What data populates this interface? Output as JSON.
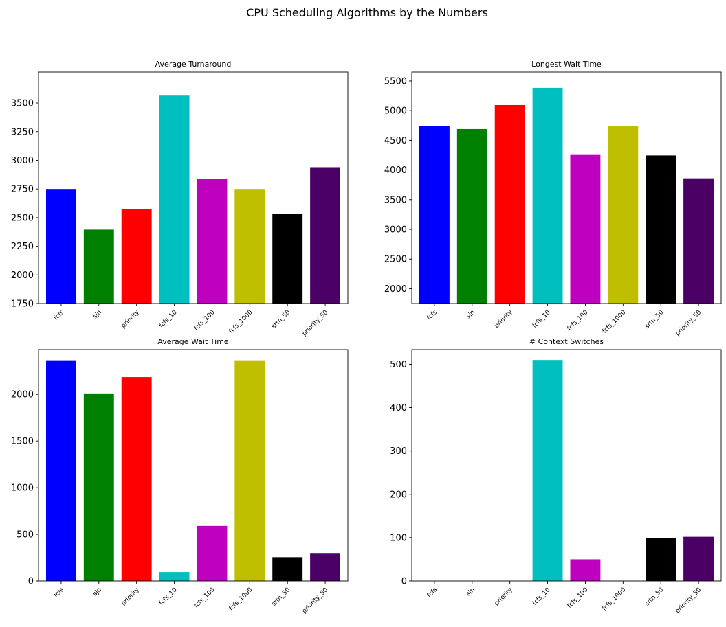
{
  "figure": {
    "suptitle": "CPU Scheduling Algorithms by the Numbers"
  },
  "chart_data": [
    {
      "type": "bar",
      "title": "Average Turnaround",
      "categories": [
        "fcfs",
        "sjn",
        "priority",
        "fcfs_10",
        "fcfs_100",
        "fcfs_1000",
        "srtn_50",
        "priority_50"
      ],
      "values": [
        2750,
        2395,
        2572,
        3565,
        2835,
        2750,
        2530,
        2940
      ],
      "colors": [
        "#0000ff",
        "#008000",
        "#ff0000",
        "#00bfbf",
        "#bf00bf",
        "#bfbf00",
        "#000000",
        "#4b0066"
      ],
      "ylim": [
        1750,
        3770
      ],
      "yticks": [
        1750,
        2000,
        2250,
        2500,
        2750,
        3000,
        3250,
        3500
      ],
      "xlabel": "",
      "ylabel": "",
      "grid": false,
      "legend": "none"
    },
    {
      "type": "bar",
      "title": "Longest Wait Time",
      "categories": [
        "fcfs",
        "sjn",
        "priority",
        "fcfs_10",
        "fcfs_100",
        "fcfs_1000",
        "srtn_50",
        "priority_50"
      ],
      "values": [
        4745,
        4690,
        5095,
        5385,
        4265,
        4745,
        4245,
        3860
      ],
      "colors": [
        "#0000ff",
        "#008000",
        "#ff0000",
        "#00bfbf",
        "#bf00bf",
        "#bfbf00",
        "#000000",
        "#4b0066"
      ],
      "ylim": [
        1750,
        5650
      ],
      "yticks": [
        2000,
        2500,
        3000,
        3500,
        4000,
        4500,
        5000,
        5500
      ],
      "xlabel": "",
      "ylabel": "",
      "grid": false,
      "legend": "none"
    },
    {
      "type": "bar",
      "title": "Average Wait Time",
      "categories": [
        "fcfs",
        "sjn",
        "priority",
        "fcfs_10",
        "fcfs_100",
        "fcfs_1000",
        "srtn_50",
        "priority_50"
      ],
      "values": [
        2365,
        2010,
        2185,
        95,
        590,
        2365,
        255,
        300
      ],
      "colors": [
        "#0000ff",
        "#008000",
        "#ff0000",
        "#00bfbf",
        "#bf00bf",
        "#bfbf00",
        "#000000",
        "#4b0066"
      ],
      "ylim": [
        0,
        2480
      ],
      "yticks": [
        0,
        500,
        1000,
        1500,
        2000
      ],
      "xlabel": "",
      "ylabel": "",
      "grid": false,
      "legend": "none"
    },
    {
      "type": "bar",
      "title": "# Context Switches",
      "categories": [
        "fcfs",
        "sjn",
        "priority",
        "fcfs_10",
        "fcfs_100",
        "fcfs_1000",
        "srtn_50",
        "priority_50"
      ],
      "values": [
        0,
        0,
        0,
        510,
        50,
        0,
        99,
        102
      ],
      "colors": [
        "#0000ff",
        "#008000",
        "#ff0000",
        "#00bfbf",
        "#bf00bf",
        "#bfbf00",
        "#000000",
        "#4b0066"
      ],
      "ylim": [
        0,
        534
      ],
      "yticks": [
        0,
        100,
        200,
        300,
        400,
        500
      ],
      "xlabel": "",
      "ylabel": "",
      "grid": false,
      "legend": "none"
    }
  ]
}
